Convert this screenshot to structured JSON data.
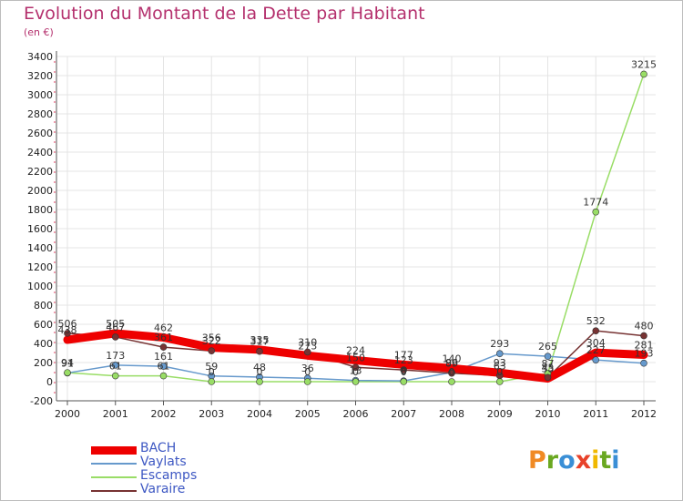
{
  "title": "Evolution du Montant de la Dette par Habitant",
  "subtitle": "(en €)",
  "logo": {
    "text": "Proxiti",
    "colors": [
      "#f08a24",
      "#6aa821",
      "#3a8fd6",
      "#e8422a",
      "#f0b800",
      "#6aa821",
      "#3a8fd6"
    ]
  },
  "chart_data": {
    "type": "line",
    "x": [
      2000,
      2001,
      2002,
      2003,
      2004,
      2005,
      2006,
      2007,
      2008,
      2009,
      2010,
      2011,
      2012
    ],
    "ylim": [
      -200,
      3400
    ],
    "yticks": [
      -200,
      0,
      200,
      400,
      600,
      800,
      1000,
      1200,
      1400,
      1600,
      1800,
      2000,
      2200,
      2400,
      2600,
      2800,
      3000,
      3200,
      3400
    ],
    "grid": true,
    "legend_position": "bottom-left",
    "series": [
      {
        "name": "BACH",
        "color": "#ee0000",
        "width": 9,
        "marker": false,
        "values": [
          438,
          505,
          462,
          356,
          335,
          273,
          224,
          177,
          140,
          93,
          33,
          304,
          281
        ],
        "labels": [
          "438",
          "505",
          "462",
          "356",
          "335",
          "273",
          "224",
          "177",
          "140",
          "93",
          "33",
          "304",
          "281"
        ]
      },
      {
        "name": "Vaylats",
        "color": "#6699cc",
        "width": 1.5,
        "marker": true,
        "values": [
          91,
          173,
          161,
          59,
          48,
          36,
          13,
          8,
          96,
          293,
          265,
          227,
          193
        ],
        "labels": [
          "91",
          "173",
          "161",
          "59",
          "48",
          "36",
          "13",
          "8",
          "96",
          "293",
          "265",
          "227",
          "193"
        ]
      },
      {
        "name": "Escamps",
        "color": "#99dd66",
        "width": 1.5,
        "marker": true,
        "values": [
          94,
          61,
          61,
          0,
          0,
          0,
          0,
          0,
          0,
          0,
          87,
          1774,
          3215
        ],
        "labels": [
          "94",
          "61",
          "61",
          "0",
          "0",
          "0",
          "0",
          "0",
          "0",
          "0",
          "87",
          "1774",
          "3215"
        ]
      },
      {
        "name": "Varaire",
        "color": "#773333",
        "width": 1.5,
        "marker": true,
        "values": [
          506,
          467,
          361,
          322,
          317,
          310,
          150,
          123,
          89,
          63,
          45,
          532,
          480
        ],
        "labels": [
          "506",
          "467",
          "361",
          "322",
          "317",
          "310",
          "150",
          "123",
          "89",
          "63",
          "45",
          "532",
          "480"
        ]
      }
    ]
  }
}
